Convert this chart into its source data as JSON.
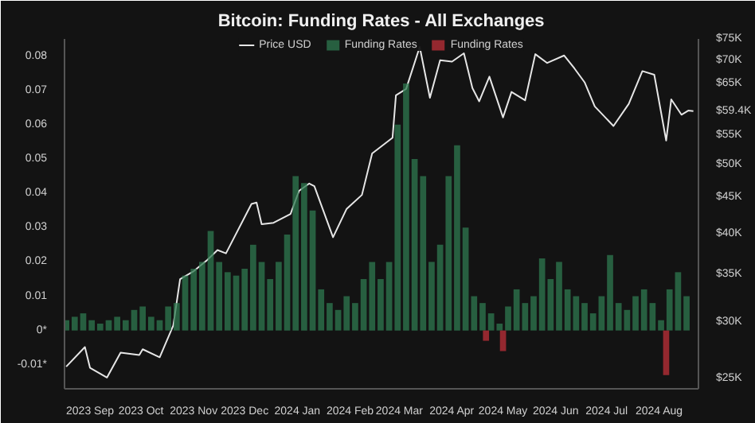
{
  "chart_data": {
    "type": "bar",
    "title": "Bitcoin: Funding Rates - All Exchanges",
    "legend": "top",
    "log": "y2",
    "xlim": [
      "2023-08-17",
      "2024-08-24"
    ],
    "xticks": [
      {
        "value": "2023-09-01",
        "label": "2023 Sep"
      },
      {
        "value": "2023-10-01",
        "label": "2023 Oct"
      },
      {
        "value": "2023-11-01",
        "label": "2023 Nov"
      },
      {
        "value": "2023-12-01",
        "label": "2023 Dec"
      },
      {
        "value": "2024-01-01",
        "label": "2024 Jan"
      },
      {
        "value": "2024-02-01",
        "label": "2024 Feb"
      },
      {
        "value": "2024-03-01",
        "label": "2024 Mar"
      },
      {
        "value": "2024-04-01",
        "label": "2024 Apr"
      },
      {
        "value": "2024-05-01",
        "label": "2024 May"
      },
      {
        "value": "2024-06-01",
        "label": "2024 Jun"
      },
      {
        "value": "2024-07-01",
        "label": "2024 Jul"
      },
      {
        "value": "2024-08-01",
        "label": "2024 Aug"
      }
    ],
    "ylim": [
      -0.017,
      0.085
    ],
    "yticks": [
      {
        "value": -0.01,
        "label": "-0.01*"
      },
      {
        "value": 0,
        "label": "0*"
      },
      0.01,
      0.02,
      0.03,
      0.04,
      0.05,
      0.06,
      0.07,
      0.08
    ],
    "y2lim": [
      24200,
      75000
    ],
    "y2ticks": [
      {
        "value": 25000,
        "label": "$25K"
      },
      {
        "value": 30000,
        "label": "$30K"
      },
      {
        "value": 35000,
        "label": "$35K"
      },
      {
        "value": 40000,
        "label": "$40K"
      },
      {
        "value": 45000,
        "label": "$45K"
      },
      {
        "value": 50000,
        "label": "$50K"
      },
      {
        "value": 55000,
        "label": "$55K"
      },
      {
        "value": 59400,
        "label": "$59.4K"
      },
      {
        "value": 65000,
        "label": "$65K"
      },
      {
        "value": 70000,
        "label": "$70K"
      },
      {
        "value": 75000,
        "label": "$75K"
      }
    ],
    "series": [
      {
        "name": "Price USD",
        "type": "line",
        "axis": "y2",
        "color": "#e6e6e6",
        "x": [
          "2023-08-18",
          "2023-08-29",
          "2023-09-01",
          "2023-09-11",
          "2023-09-19",
          "2023-09-30",
          "2023-10-02",
          "2023-10-12",
          "2023-10-20",
          "2023-10-24",
          "2023-11-01",
          "2023-11-09",
          "2023-11-15",
          "2023-11-20",
          "2023-12-05",
          "2023-12-08",
          "2023-12-11",
          "2023-12-18",
          "2023-12-28",
          "2024-01-02",
          "2024-01-08",
          "2024-01-11",
          "2024-01-22",
          "2024-01-30",
          "2024-02-08",
          "2024-02-14",
          "2024-02-26",
          "2024-02-28",
          "2024-03-05",
          "2024-03-13",
          "2024-03-19",
          "2024-03-25",
          "2024-04-01",
          "2024-04-08",
          "2024-04-13",
          "2024-04-17",
          "2024-04-23",
          "2024-05-01",
          "2024-05-06",
          "2024-05-14",
          "2024-05-20",
          "2024-05-27",
          "2024-06-06",
          "2024-06-12",
          "2024-06-18",
          "2024-06-24",
          "2024-07-05",
          "2024-07-14",
          "2024-07-22",
          "2024-07-29",
          "2024-08-05",
          "2024-08-08",
          "2024-08-14",
          "2024-08-18",
          "2024-08-21"
        ],
        "values": [
          26000,
          27700,
          25900,
          25100,
          27200,
          27000,
          27500,
          26800,
          29700,
          34500,
          35400,
          36700,
          37900,
          37500,
          44000,
          44200,
          41200,
          41400,
          42600,
          45900,
          47000,
          46600,
          39500,
          43300,
          45300,
          51800,
          54500,
          62500,
          63800,
          73100,
          62000,
          70000,
          69700,
          71600,
          64000,
          61300,
          66400,
          58200,
          63200,
          61500,
          71400,
          69400,
          71100,
          68200,
          65200,
          60300,
          56600,
          60800,
          67600,
          66800,
          54000,
          61700,
          58700,
          59500,
          59400
        ]
      },
      {
        "name": "Funding Rates",
        "color": "#2f7a50",
        "x": [
          "2023-08-18",
          "2023-08-23",
          "2023-08-28",
          "2023-09-02",
          "2023-09-07",
          "2023-09-12",
          "2023-09-17",
          "2023-09-22",
          "2023-09-27",
          "2023-10-02",
          "2023-10-07",
          "2023-10-12",
          "2023-10-17",
          "2023-10-22",
          "2023-10-27",
          "2023-11-01",
          "2023-11-06",
          "2023-11-11",
          "2023-11-16",
          "2023-11-21",
          "2023-11-26",
          "2023-12-01",
          "2023-12-06",
          "2023-12-11",
          "2023-12-16",
          "2023-12-21",
          "2023-12-26",
          "2023-12-31",
          "2024-01-05",
          "2024-01-10",
          "2024-01-15",
          "2024-01-20",
          "2024-01-25",
          "2024-01-30",
          "2024-02-04",
          "2024-02-09",
          "2024-02-14",
          "2024-02-19",
          "2024-02-24",
          "2024-02-29",
          "2024-03-05",
          "2024-03-10",
          "2024-03-15",
          "2024-03-20",
          "2024-03-25",
          "2024-03-30",
          "2024-04-04",
          "2024-04-09",
          "2024-04-14",
          "2024-04-19",
          "2024-04-24",
          "2024-04-29",
          "2024-05-04",
          "2024-05-09",
          "2024-05-14",
          "2024-05-19",
          "2024-05-24",
          "2024-05-29",
          "2024-06-03",
          "2024-06-08",
          "2024-06-13",
          "2024-06-18",
          "2024-06-23",
          "2024-06-28",
          "2024-07-03",
          "2024-07-08",
          "2024-07-13",
          "2024-07-18",
          "2024-07-23",
          "2024-07-28",
          "2024-08-02",
          "2024-08-07",
          "2024-08-12",
          "2024-08-17"
        ],
        "values": [
          0.003,
          0.004,
          0.005,
          0.003,
          0.002,
          0.003,
          0.004,
          0.003,
          0.006,
          0.007,
          0.004,
          0.003,
          0.007,
          0.008,
          0.016,
          0.018,
          0.02,
          0.029,
          0.02,
          0.017,
          0.016,
          0.018,
          0.025,
          0.02,
          0.015,
          0.02,
          0.028,
          0.045,
          0.043,
          0.035,
          0.012,
          0.008,
          0.006,
          0.01,
          0.008,
          0.015,
          0.02,
          0.015,
          0.02,
          0.06,
          0.072,
          0.05,
          0.045,
          0.02,
          0.025,
          0.045,
          0.054,
          0.03,
          0.01,
          0.008,
          0.005,
          0.002,
          0.007,
          0.012,
          0.008,
          0.01,
          0.021,
          0.015,
          0.02,
          0.012,
          0.01,
          0.008,
          0.005,
          0.01,
          0.022,
          0.008,
          0.006,
          0.01,
          0.012,
          0.008,
          0.003,
          0.012,
          0.017,
          0.01
        ]
      },
      {
        "name": "Funding Rates",
        "color": "#c0303a",
        "x": [
          "2024-04-21",
          "2024-05-01",
          "2024-08-05"
        ],
        "values": [
          -0.003,
          -0.006,
          -0.013
        ]
      }
    ]
  }
}
